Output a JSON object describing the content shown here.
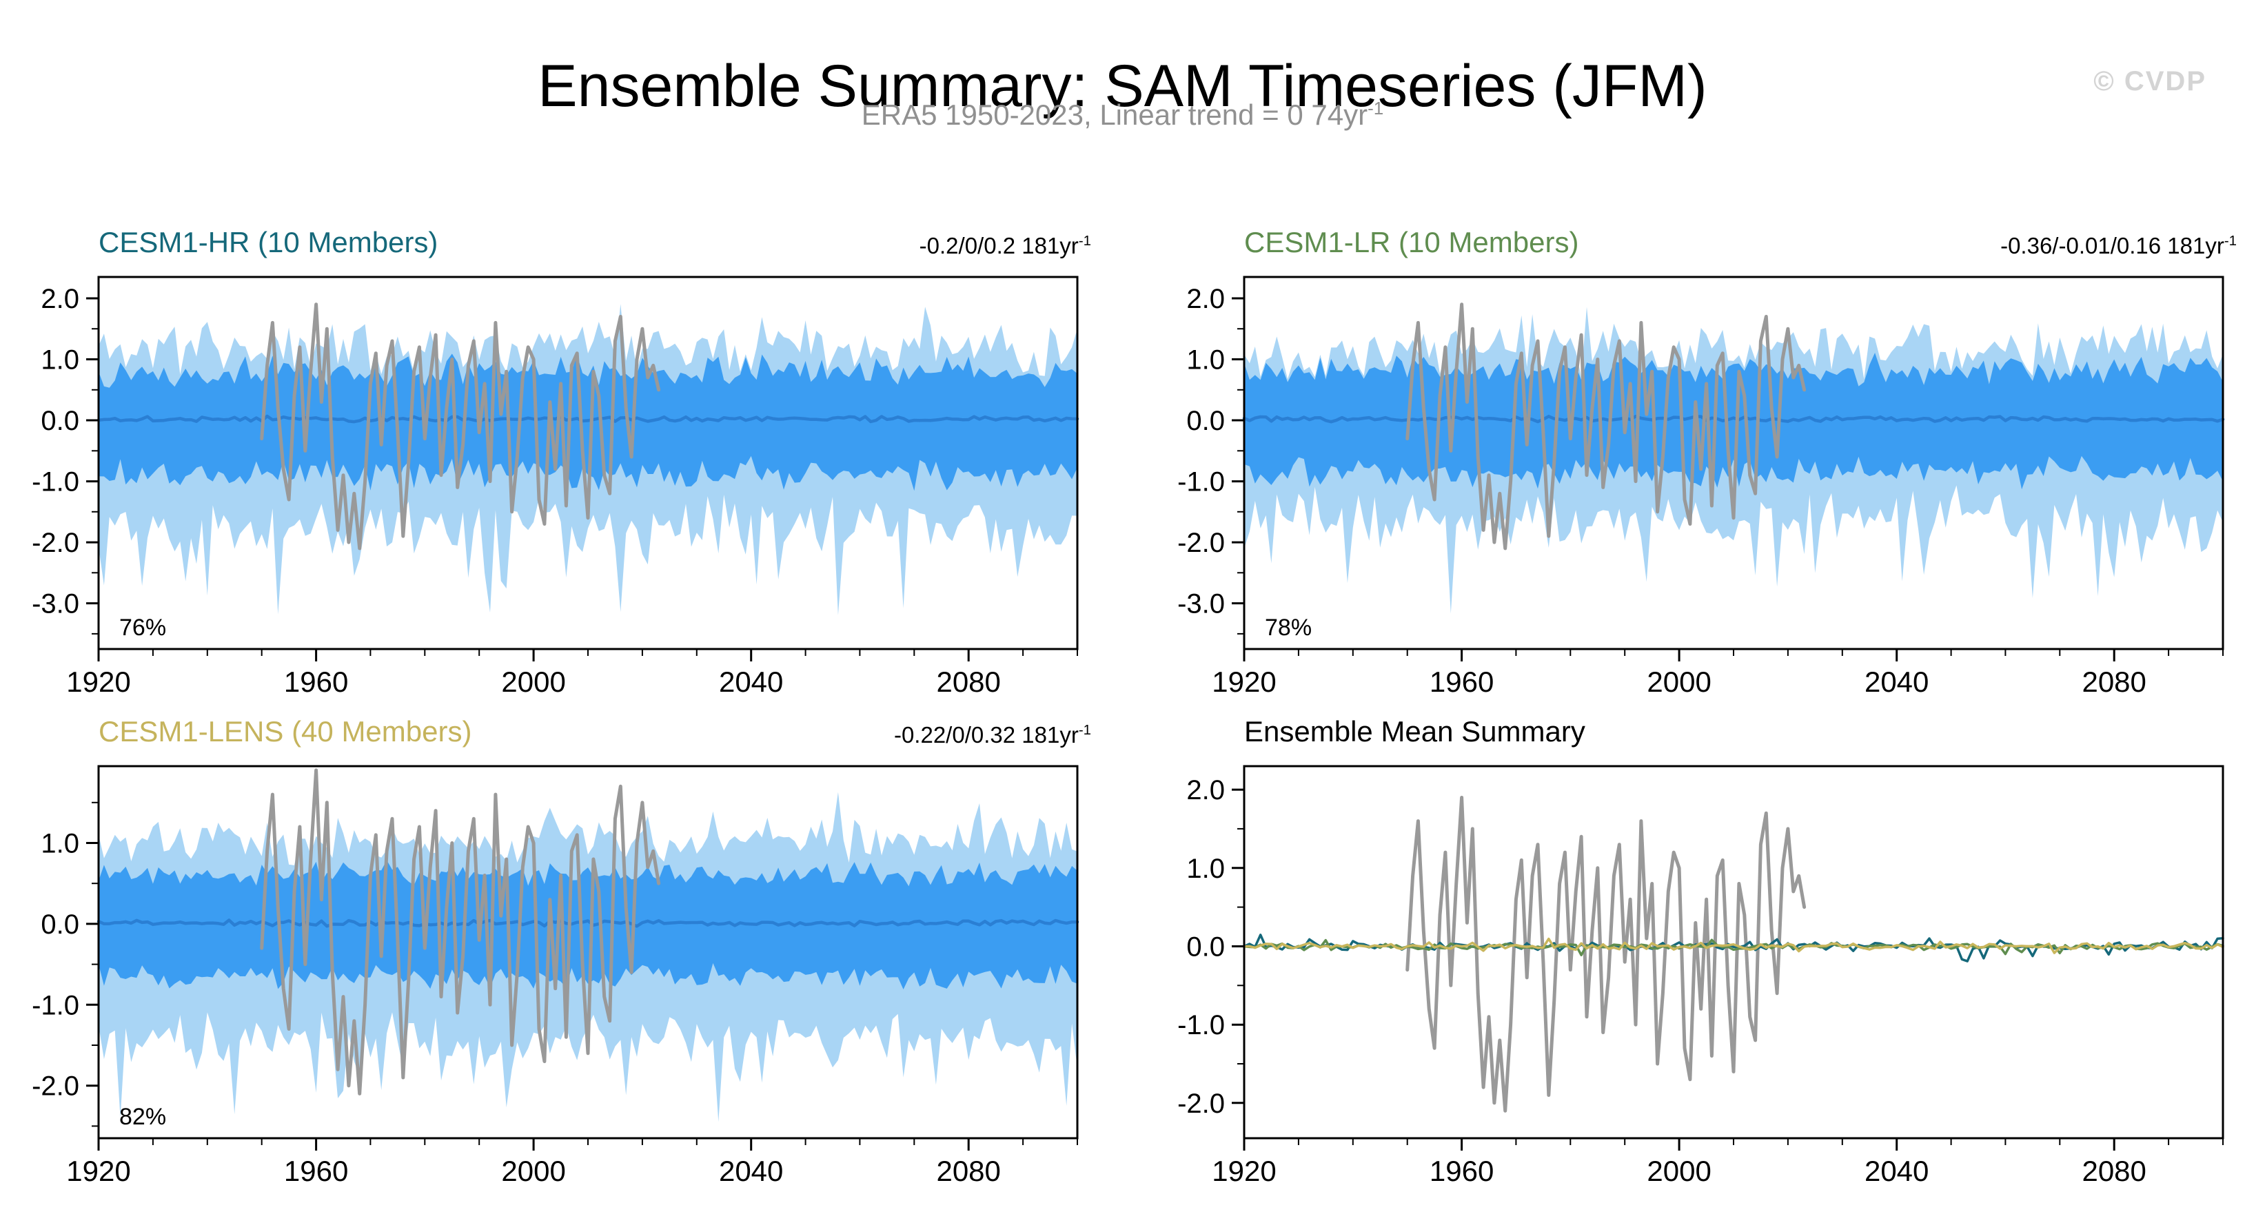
{
  "header": {
    "title": "Ensemble Summary: SAM Timeseries (JFM)",
    "subtitle": "ERA5 1950-2023, Linear trend = 0 74yr",
    "subtitle_sup": "-1",
    "watermark": "© CVDP"
  },
  "colors": {
    "outer_band": "#a9d5f5",
    "inner_band": "#3b9df2",
    "ensemble_mean_line": "#2a7fd4",
    "observation_line": "#999999",
    "axis": "#000000"
  },
  "observations": {
    "label": "ERA5",
    "start_year": 1950,
    "end_year": 2023,
    "values": [
      -0.3,
      0.9,
      1.6,
      0.2,
      -0.8,
      -1.3,
      0.4,
      1.2,
      -0.5,
      0.8,
      1.9,
      0.3,
      1.5,
      -0.6,
      -1.8,
      -0.9,
      -2.0,
      -1.2,
      -2.1,
      -1.0,
      0.6,
      1.1,
      -0.4,
      0.9,
      1.3,
      -0.2,
      -1.9,
      -0.7,
      0.8,
      1.2,
      -0.3,
      0.7,
      1.4,
      -0.9,
      0.2,
      1.0,
      -1.1,
      -0.4,
      0.9,
      1.3,
      -0.2,
      0.6,
      -1.0,
      1.6,
      0.1,
      0.8,
      -1.5,
      -0.6,
      0.7,
      1.2,
      1.0,
      -1.3,
      -1.7,
      0.3,
      -0.8,
      0.6,
      -1.4,
      0.9,
      1.1,
      -0.5,
      -1.6,
      0.8,
      0.4,
      -0.9,
      -1.2,
      1.3,
      1.7,
      0.2,
      -0.6,
      1.0,
      1.5,
      0.7,
      0.9,
      0.5
    ]
  },
  "chart_data": [
    {
      "type": "area",
      "title": "CESM1-HR (10 Members)",
      "title_color": "#15687a",
      "trend": "-0.2/0/0.2 181yr",
      "trend_sup": "-1",
      "agreement": "76%",
      "x_range": [
        1920,
        2100
      ],
      "x_ticks": [
        1920,
        1960,
        2000,
        2040,
        2080
      ],
      "y_range": [
        -3.75,
        2.35
      ],
      "y_ticks": [
        2.0,
        1.0,
        0.0,
        -1.0,
        -2.0,
        -3.0
      ],
      "seed": 11,
      "show_obs": true,
      "bands": {
        "outer_hi": {
          "base": 1.2,
          "amp": 0.5,
          "spike_prob": 0.08,
          "spike_amp": 0.6,
          "spike_sign": "up"
        },
        "outer_lo": {
          "base": -1.7,
          "amp": 0.6,
          "spike_prob": 0.12,
          "spike_amp": 1.3,
          "spike_sign": "down"
        },
        "inner_hi": {
          "base": 0.82,
          "amp": 0.3,
          "spike_prob": 0,
          "spike_amp": 0,
          "spike_sign": "up"
        },
        "inner_lo": {
          "base": -0.88,
          "amp": 0.3,
          "spike_prob": 0,
          "spike_amp": 0,
          "spike_sign": "down"
        },
        "mean": {
          "base": 0.02,
          "amp": 0.05,
          "spike_prob": 0,
          "spike_amp": 0,
          "spike_sign": "both"
        }
      }
    },
    {
      "type": "area",
      "title": "CESM1-LR (10 Members)",
      "title_color": "#5f8d4f",
      "trend": "-0.36/-0.01/0.16 181yr",
      "trend_sup": "-1",
      "agreement": "78%",
      "x_range": [
        1920,
        2100
      ],
      "x_ticks": [
        1920,
        1960,
        2000,
        2040,
        2080
      ],
      "y_range": [
        -3.75,
        2.35
      ],
      "y_ticks": [
        2.0,
        1.0,
        0.0,
        -1.0,
        -2.0,
        -3.0
      ],
      "seed": 22,
      "show_obs": true,
      "bands": {
        "outer_hi": {
          "base": 1.15,
          "amp": 0.5,
          "spike_prob": 0.08,
          "spike_amp": 0.6,
          "spike_sign": "up"
        },
        "outer_lo": {
          "base": -1.6,
          "amp": 0.6,
          "spike_prob": 0.12,
          "spike_amp": 1.3,
          "spike_sign": "down"
        },
        "inner_hi": {
          "base": 0.85,
          "amp": 0.3,
          "spike_prob": 0,
          "spike_amp": 0,
          "spike_sign": "up"
        },
        "inner_lo": {
          "base": -0.85,
          "amp": 0.3,
          "spike_prob": 0,
          "spike_amp": 0,
          "spike_sign": "down"
        },
        "mean": {
          "base": 0.02,
          "amp": 0.05,
          "spike_prob": 0,
          "spike_amp": 0,
          "spike_sign": "both"
        }
      }
    },
    {
      "type": "area",
      "title": "CESM1-LENS (40 Members)",
      "title_color": "#c5b35c",
      "trend": "-0.22/0/0.32 181yr",
      "trend_sup": "-1",
      "agreement": "82%",
      "x_range": [
        1920,
        2100
      ],
      "x_ticks": [
        1920,
        1960,
        2000,
        2040,
        2080
      ],
      "y_range": [
        -2.65,
        1.95
      ],
      "y_ticks": [
        1.0,
        0.0,
        -1.0,
        -2.0
      ],
      "seed": 33,
      "show_obs": true,
      "bands": {
        "outer_hi": {
          "base": 1.0,
          "amp": 0.35,
          "spike_prob": 0.07,
          "spike_amp": 0.5,
          "spike_sign": "up"
        },
        "outer_lo": {
          "base": -1.45,
          "amp": 0.45,
          "spike_prob": 0.1,
          "spike_amp": 0.8,
          "spike_sign": "down"
        },
        "inner_hi": {
          "base": 0.62,
          "amp": 0.18,
          "spike_prob": 0,
          "spike_amp": 0,
          "spike_sign": "up"
        },
        "inner_lo": {
          "base": -0.66,
          "amp": 0.18,
          "spike_prob": 0,
          "spike_amp": 0,
          "spike_sign": "down"
        },
        "mean": {
          "base": 0.01,
          "amp": 0.04,
          "spike_prob": 0,
          "spike_amp": 0,
          "spike_sign": "both"
        }
      }
    },
    {
      "type": "line",
      "title": "Ensemble Mean Summary",
      "title_color": "#000000",
      "trend": "",
      "trend_sup": "",
      "agreement": "",
      "x_range": [
        1920,
        2100
      ],
      "x_ticks": [
        1920,
        1960,
        2000,
        2040,
        2080
      ],
      "y_range": [
        -2.45,
        2.3
      ],
      "y_ticks": [
        2.0,
        1.0,
        0.0,
        -1.0,
        -2.0
      ],
      "show_obs": true,
      "series": [
        {
          "name": "CESM1-HR",
          "color": "#15687a",
          "seed": 44,
          "amp": 0.07,
          "spike_prob": 0.06,
          "spike_amp": 0.16
        },
        {
          "name": "CESM1-LR",
          "color": "#5f8d4f",
          "seed": 45,
          "amp": 0.05,
          "spike_prob": 0.03,
          "spike_amp": 0.1
        },
        {
          "name": "CESM1-LENS",
          "color": "#c9b65c",
          "seed": 46,
          "amp": 0.05,
          "spike_prob": 0.02,
          "spike_amp": 0.08
        }
      ]
    }
  ]
}
